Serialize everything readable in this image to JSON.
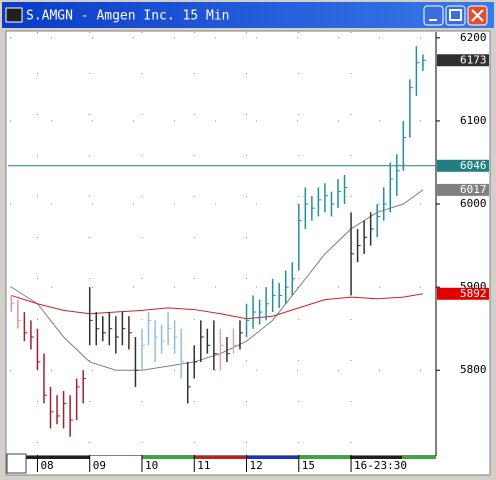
{
  "chart_data": {
    "type": "ohlc",
    "title": "S.AMGN - Amgen Inc. 15 Min",
    "xlim": [
      -0.2,
      65
    ],
    "ylim": [
      5698,
      6207
    ],
    "yticks": [
      5800,
      5900,
      6000,
      6100,
      6200
    ],
    "xticks": [
      {
        "value": 4,
        "label": "08"
      },
      {
        "value": 12,
        "label": "09"
      },
      {
        "value": 20,
        "label": "10"
      },
      {
        "value": 28,
        "label": "11"
      },
      {
        "value": 36,
        "label": "12"
      },
      {
        "value": 44,
        "label": "15"
      },
      {
        "value": 52,
        "label": "16-23:30"
      }
    ],
    "grid": true,
    "x": [
      0,
      1,
      2,
      3,
      4,
      5,
      6,
      7,
      8,
      9,
      10,
      11,
      12,
      13,
      14,
      15,
      16,
      17,
      18,
      19,
      20,
      21,
      22,
      23,
      24,
      25,
      26,
      27,
      28,
      29,
      30,
      31,
      32,
      33,
      34,
      35,
      36,
      37,
      38,
      39,
      40,
      41,
      42,
      43,
      44,
      45,
      46,
      47,
      48,
      49,
      50,
      51,
      52,
      53,
      54,
      55,
      56,
      57,
      58,
      59,
      60,
      61,
      62,
      63
    ],
    "high": [
      5890,
      5885,
      5870,
      5860,
      5850,
      5820,
      5780,
      5770,
      5775,
      5770,
      5790,
      5800,
      5900,
      5870,
      5865,
      5870,
      5865,
      5870,
      5865,
      5840,
      5850,
      5870,
      5860,
      5855,
      5870,
      5860,
      5850,
      5810,
      5830,
      5860,
      5850,
      5860,
      5850,
      5840,
      5850,
      5860,
      5880,
      5890,
      5885,
      5900,
      5910,
      5905,
      5920,
      5930,
      6000,
      6020,
      6010,
      6020,
      6025,
      6015,
      6030,
      6035,
      5990,
      5970,
      5980,
      5990,
      6000,
      6020,
      6050,
      6060,
      6100,
      6150,
      6190,
      6180
    ],
    "low": [
      5870,
      5850,
      5835,
      5825,
      5800,
      5760,
      5730,
      5735,
      5730,
      5720,
      5740,
      5760,
      5830,
      5830,
      5835,
      5830,
      5820,
      5830,
      5825,
      5780,
      5800,
      5830,
      5810,
      5820,
      5830,
      5820,
      5790,
      5760,
      5790,
      5810,
      5820,
      5800,
      5800,
      5810,
      5820,
      5825,
      5840,
      5850,
      5855,
      5860,
      5870,
      5875,
      5880,
      5890,
      5920,
      5970,
      5980,
      5985,
      5990,
      5985,
      5995,
      6000,
      5890,
      5930,
      5940,
      5950,
      5960,
      5980,
      5990,
      6010,
      6040,
      6080,
      6130,
      6160
    ],
    "close": [
      5880,
      5860,
      5845,
      5840,
      5810,
      5770,
      5750,
      5745,
      5760,
      5740,
      5780,
      5790,
      5860,
      5850,
      5845,
      5850,
      5840,
      5850,
      5845,
      5800,
      5830,
      5860,
      5840,
      5835,
      5850,
      5840,
      5810,
      5780,
      5810,
      5840,
      5830,
      5820,
      5830,
      5820,
      5830,
      5845,
      5860,
      5870,
      5870,
      5880,
      5890,
      5890,
      5900,
      5910,
      5980,
      6000,
      5995,
      6005,
      6010,
      6000,
      6015,
      6020,
      5940,
      5950,
      5960,
      5970,
      5985,
      6000,
      6030,
      6040,
      6080,
      6140,
      6170,
      6173
    ],
    "colors": [
      "#e090b0",
      "#e090b0",
      "#a02030",
      "#a02030",
      "#a02030",
      "#a02030",
      "#a02030",
      "#a02030",
      "#a02030",
      "#a02030",
      "#a02030",
      "#a02030",
      "#303030",
      "#303030",
      "#303030",
      "#303030",
      "#303030",
      "#303030",
      "#303030",
      "#303030",
      "#90c0e0",
      "#90c0e0",
      "#90c0e0",
      "#90c0e0",
      "#90c0e0",
      "#90c0e0",
      "#90c0e0",
      "#303030",
      "#303030",
      "#303030",
      "#303030",
      "#303030",
      "#d8a0d0",
      "#303030",
      "#d8a0d0",
      "#303030",
      "#2090a0",
      "#2090a0",
      "#2090a0",
      "#2090a0",
      "#2090a0",
      "#2090a0",
      "#2090a0",
      "#2090a0",
      "#2090a0",
      "#2090a0",
      "#2090a0",
      "#2090a0",
      "#2090a0",
      "#2090a0",
      "#2090a0",
      "#2090a0",
      "#303030",
      "#303030",
      "#303030",
      "#303030",
      "#2090a0",
      "#2090a0",
      "#2090a0",
      "#2090a0",
      "#2090a0",
      "#2090a0",
      "#2090a0",
      "#2090a0"
    ],
    "averages": [
      {
        "color": "#808080",
        "x": [
          0,
          4,
          8,
          12,
          16,
          20,
          24,
          28,
          32,
          36,
          40,
          44,
          48,
          52,
          56,
          60,
          63
        ],
        "values": [
          5900,
          5880,
          5840,
          5810,
          5800,
          5800,
          5805,
          5810,
          5820,
          5835,
          5860,
          5900,
          5940,
          5970,
          5990,
          6000,
          6017
        ]
      },
      {
        "color": "#d02020",
        "x": [
          0,
          4,
          8,
          12,
          16,
          20,
          24,
          28,
          32,
          36,
          40,
          44,
          48,
          52,
          56,
          60,
          63
        ],
        "values": [
          5890,
          5880,
          5872,
          5868,
          5870,
          5872,
          5875,
          5873,
          5868,
          5862,
          5865,
          5875,
          5885,
          5888,
          5886,
          5888,
          5892
        ]
      }
    ],
    "hline": {
      "value": 6046,
      "color": "#208080"
    },
    "price_tags": [
      {
        "value": 6173,
        "color": "#303030"
      },
      {
        "value": 6046,
        "color": "#208080"
      },
      {
        "value": 6017,
        "color": "#808080"
      },
      {
        "value": 5892,
        "color": "#e00000"
      }
    ]
  }
}
